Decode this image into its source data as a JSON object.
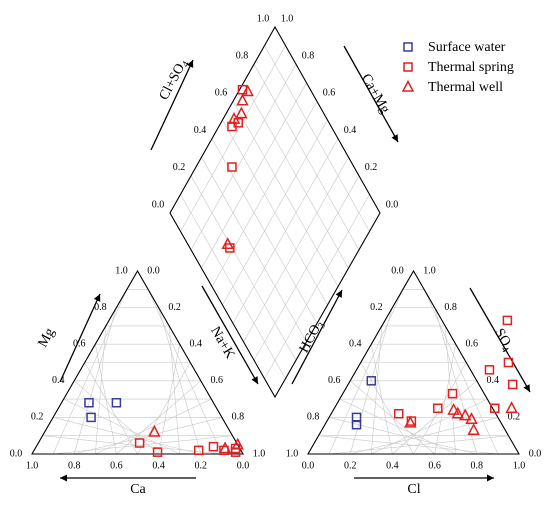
{
  "chart_data": {
    "type": "scatter",
    "diagram": "piper",
    "legend": {
      "placement": "top-right",
      "items": [
        {
          "label": "Surface water",
          "marker": "square",
          "color": "#3a3a9a"
        },
        {
          "label": "Thermal spring",
          "marker": "square",
          "color": "#e02020"
        },
        {
          "label": "Thermal well",
          "marker": "triangle",
          "color": "#e02020"
        }
      ]
    },
    "ticks": [
      "0.0",
      "0.2",
      "0.4",
      "0.6",
      "0.8",
      "1.0"
    ],
    "axes": {
      "cation_left": "Mg",
      "cation_bottom": "Ca",
      "cation_right": "Na+K",
      "anion_left": "HCO3",
      "anion_bottom": "Cl",
      "anion_right": "SO4",
      "diamond_left": "Cl+SO4",
      "diamond_right": "Ca+Mg"
    },
    "series": [
      {
        "name": "Surface water",
        "cation": [
          [
            0.13,
            0.28
          ],
          [
            0.26,
            0.28
          ],
          [
            0.18,
            0.2
          ]
        ],
        "anion": [
          [
            0.13,
            0.2
          ],
          [
            0.15,
            0.16
          ],
          [
            0.1,
            0.4
          ]
        ],
        "diamond": []
      },
      {
        "name": "Thermal spring",
        "cation": [
          [
            0.48,
            0.06
          ],
          [
            0.59,
            0.01
          ],
          [
            0.78,
            0.02
          ],
          [
            0.84,
            0.04
          ],
          [
            0.9,
            0.02
          ],
          [
            0.95,
            0.03
          ],
          [
            0.96,
            0.01
          ]
        ],
        "anion": [
          [
            0.32,
            0.22
          ],
          [
            0.49,
            0.25
          ],
          [
            0.58,
            0.73
          ],
          [
            0.52,
            0.33
          ],
          [
            0.63,
            0.46
          ],
          [
            0.78,
            0.38
          ],
          [
            0.7,
            0.5
          ],
          [
            0.76,
            0.25
          ],
          [
            0.4,
            0.18
          ]
        ],
        "diamond": [
          [
            0.19,
            0.62
          ],
          [
            0.42,
            0.83
          ],
          [
            0.53,
            0.94
          ],
          [
            0.57,
            0.92
          ],
          [
            0.68,
            0.99
          ]
        ]
      },
      {
        "name": "Thermal well",
        "cation": [
          [
            0.52,
            0.12
          ],
          [
            0.9,
            0.03
          ],
          [
            0.95,
            0.05
          ]
        ],
        "anion": [
          [
            0.57,
            0.24
          ],
          [
            0.64,
            0.21
          ],
          [
            0.68,
            0.19
          ],
          [
            0.72,
            0.13
          ],
          [
            0.4,
            0.17
          ],
          [
            0.84,
            0.25
          ],
          [
            0.6,
            0.22
          ]
        ],
        "diamond": [
          [
            0.19,
            0.64
          ],
          [
            0.56,
            0.95
          ],
          [
            0.61,
            0.93
          ],
          [
            0.65,
            0.96
          ],
          [
            0.7,
            0.96
          ]
        ]
      }
    ]
  }
}
